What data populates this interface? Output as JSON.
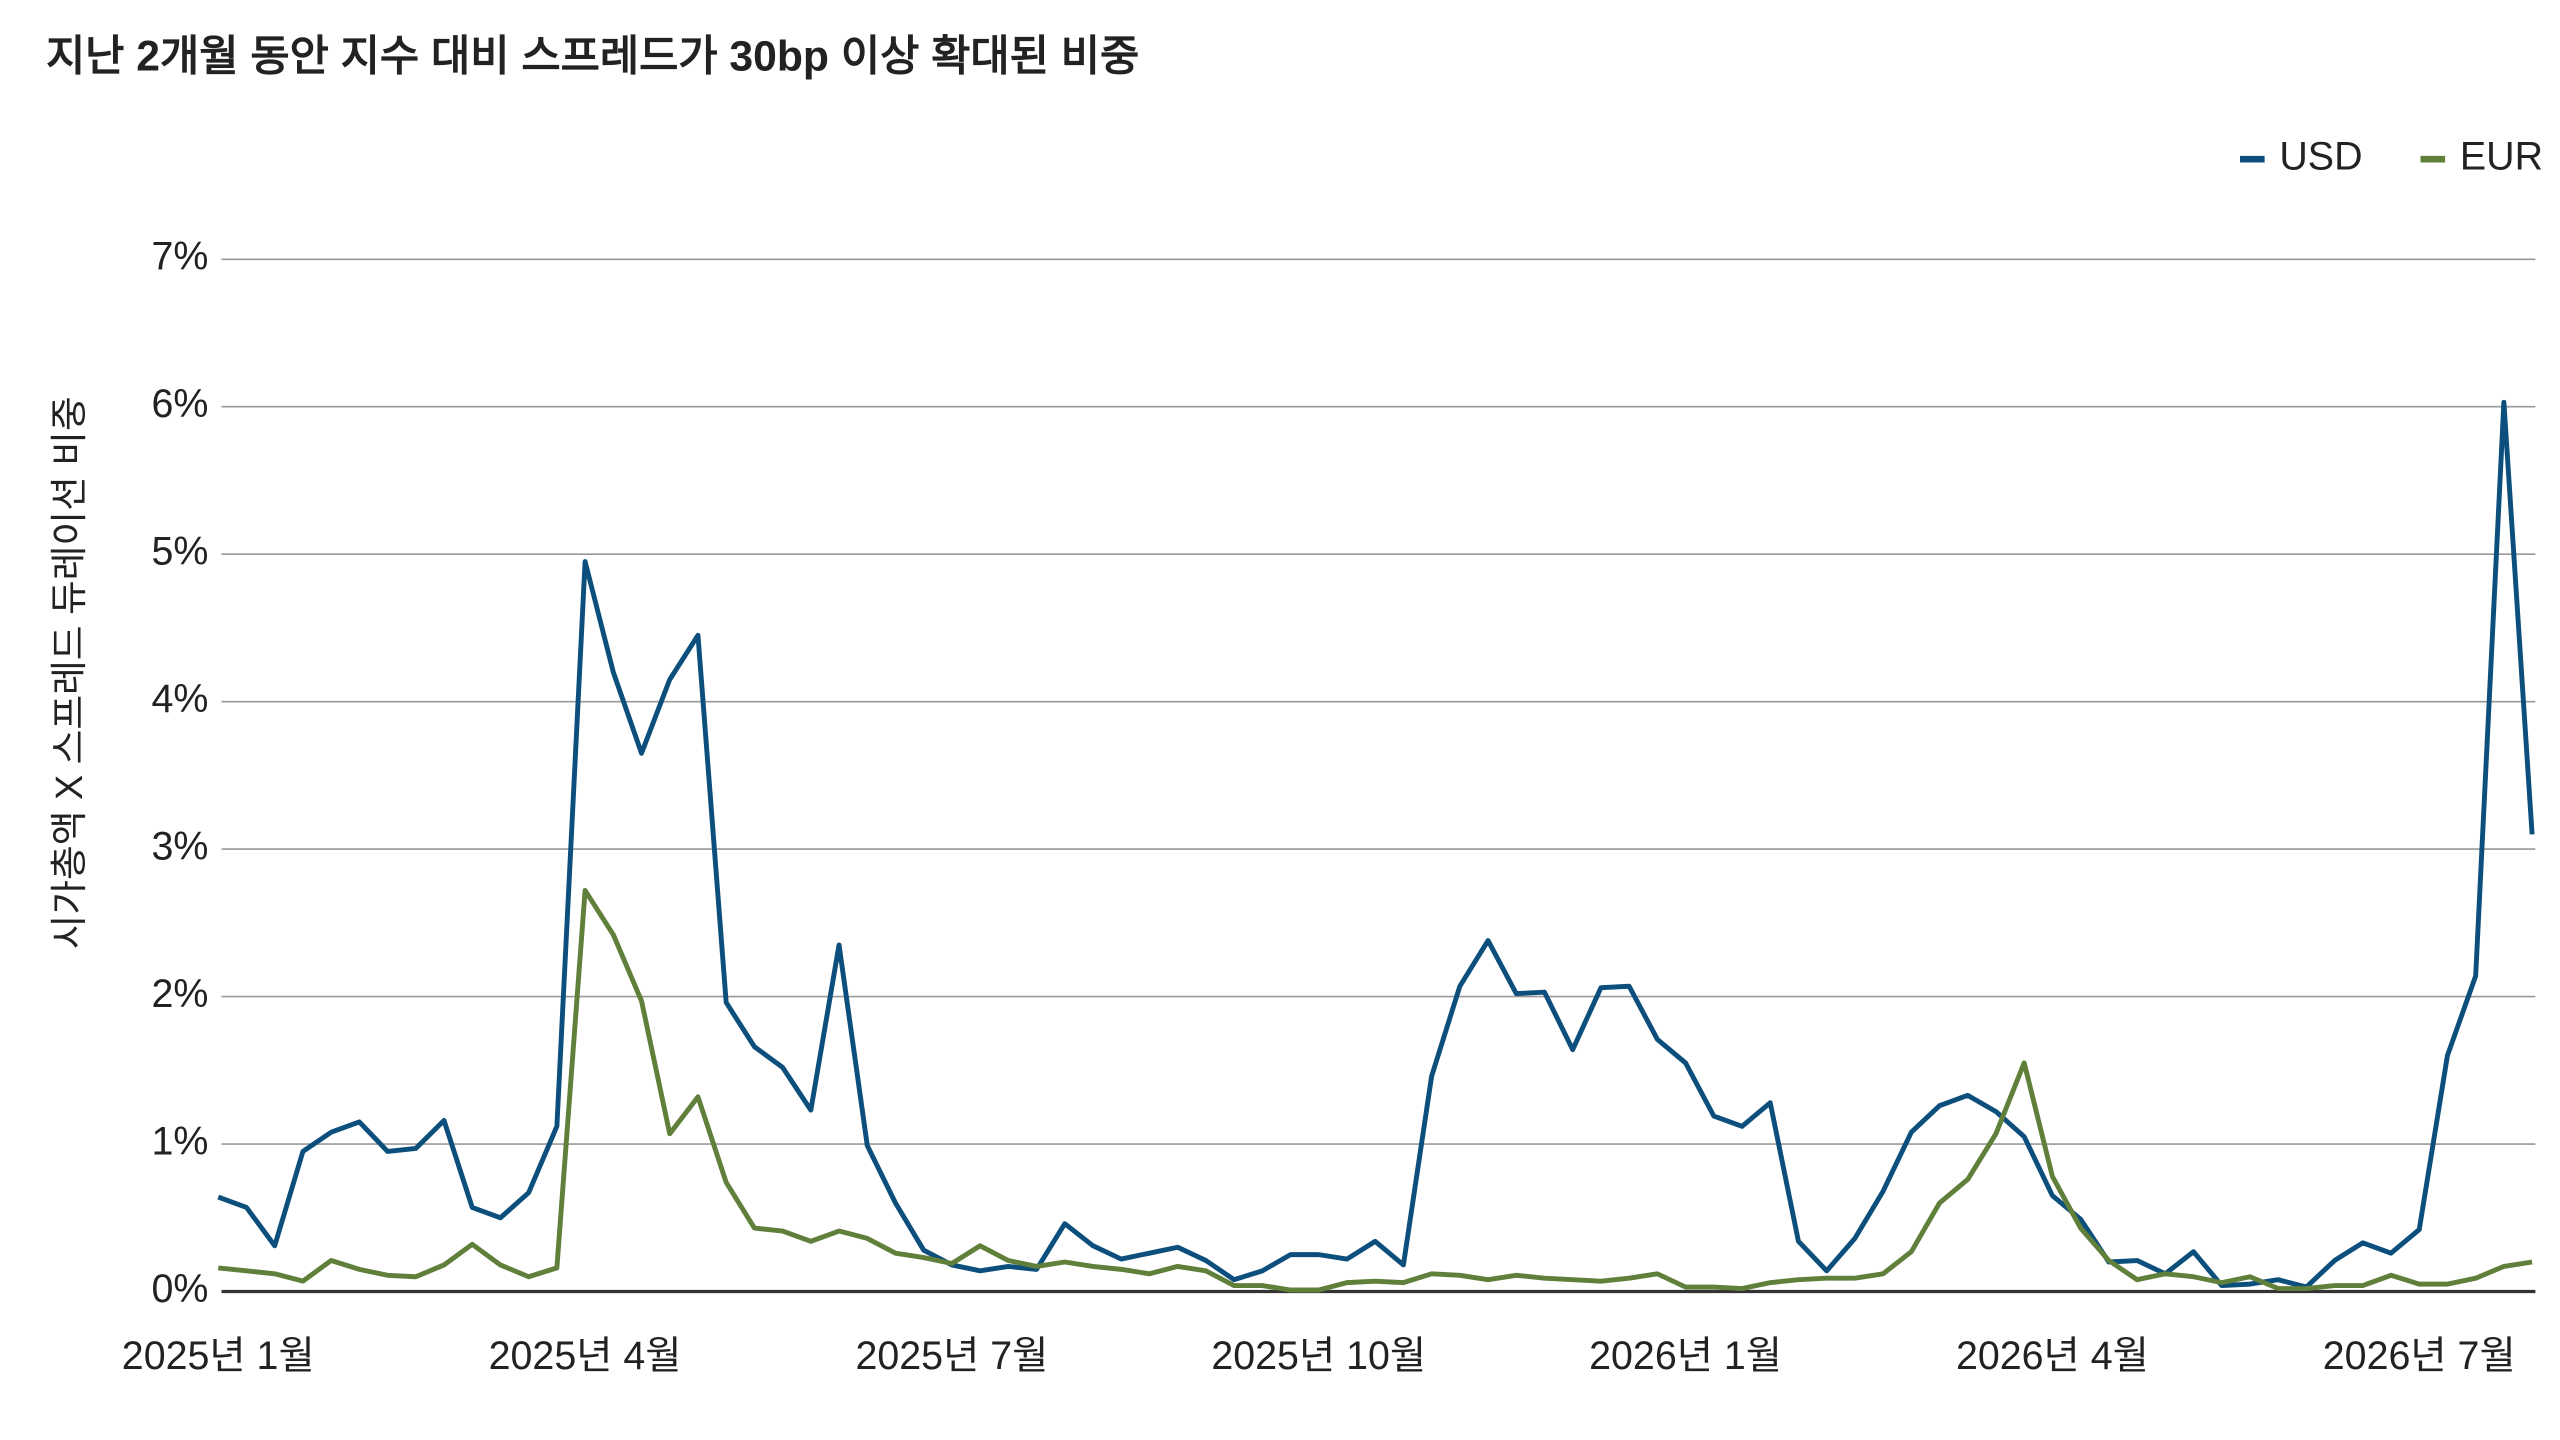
{
  "chart_data": {
    "type": "line",
    "title": "지난 2개월 동안 지수 대비 스프레드가 30bp 이상 확대된 비중",
    "y_label": "시가총액 X 스프레드 듀레이션 비중",
    "categories": [
      "2025년 1월",
      null,
      null,
      null,
      null,
      null,
      null,
      null,
      null,
      null,
      null,
      null,
      null,
      "2025년 4월",
      null,
      null,
      null,
      null,
      null,
      null,
      null,
      null,
      null,
      null,
      null,
      null,
      "2025년 7월",
      null,
      null,
      null,
      null,
      null,
      null,
      null,
      null,
      null,
      null,
      null,
      null,
      "2025년 10월",
      null,
      null,
      null,
      null,
      null,
      null,
      null,
      null,
      null,
      null,
      null,
      null,
      "2026년 1월",
      null,
      null,
      null,
      null,
      null,
      null,
      null,
      null,
      null,
      null,
      null,
      null,
      "2026년 4월",
      null,
      null,
      null,
      null,
      null,
      null,
      null,
      null,
      null,
      null,
      null,
      null,
      "2026년 7월",
      null,
      null,
      null,
      null
    ],
    "series": [
      {
        "name": "USD",
        "color": "#0d4f7c",
        "values": [
          0.64,
          0.57,
          0.31,
          0.95,
          1.08,
          1.15,
          0.95,
          0.97,
          1.16,
          0.57,
          0.5,
          0.67,
          1.12,
          4.95,
          4.2,
          3.65,
          4.15,
          4.45,
          1.96,
          1.66,
          1.52,
          1.23,
          2.35,
          0.99,
          0.6,
          0.28,
          0.18,
          0.14,
          0.17,
          0.15,
          0.46,
          0.31,
          0.22,
          0.26,
          0.3,
          0.21,
          0.08,
          0.14,
          0.25,
          0.25,
          0.22,
          0.34,
          0.18,
          1.46,
          2.07,
          2.38,
          2.02,
          2.03,
          1.64,
          2.06,
          2.07,
          1.71,
          1.55,
          1.19,
          1.12,
          1.28,
          0.34,
          0.14,
          0.36,
          0.68,
          1.08,
          1.26,
          1.33,
          1.22,
          1.05,
          0.65,
          0.49,
          0.2,
          0.21,
          0.12,
          0.27,
          0.04,
          0.05,
          0.08,
          0.03,
          0.21,
          0.33,
          0.26,
          0.42,
          1.6,
          2.14,
          6.03,
          3.1
        ]
      },
      {
        "name": "EUR",
        "color": "#5f7f3a",
        "values": [
          0.16,
          0.14,
          0.12,
          0.07,
          0.21,
          0.15,
          0.11,
          0.1,
          0.18,
          0.32,
          0.18,
          0.1,
          0.16,
          2.72,
          2.42,
          1.97,
          1.07,
          1.32,
          0.74,
          0.43,
          0.41,
          0.34,
          0.41,
          0.36,
          0.26,
          0.23,
          0.19,
          0.31,
          0.21,
          0.17,
          0.2,
          0.17,
          0.15,
          0.12,
          0.17,
          0.14,
          0.04,
          0.04,
          0.01,
          0.01,
          0.06,
          0.07,
          0.06,
          0.12,
          0.11,
          0.08,
          0.11,
          0.09,
          0.08,
          0.07,
          0.09,
          0.12,
          0.03,
          0.03,
          0.02,
          0.06,
          0.08,
          0.09,
          0.09,
          0.12,
          0.27,
          0.6,
          0.76,
          1.07,
          1.55,
          0.78,
          0.43,
          0.21,
          0.08,
          0.12,
          0.1,
          0.06,
          0.1,
          0.02,
          0.02,
          0.04,
          0.04,
          0.11,
          0.05,
          0.05,
          0.09,
          0.17,
          0.2
        ]
      }
    ],
    "ylim": [
      0,
      7
    ],
    "yticks": [
      {
        "value": 0,
        "label": "0%"
      },
      {
        "value": 1,
        "label": "1%"
      },
      {
        "value": 2,
        "label": "2%"
      },
      {
        "value": 3,
        "label": "3%"
      },
      {
        "value": 4,
        "label": "4%"
      },
      {
        "value": 5,
        "label": "5%"
      },
      {
        "value": 6,
        "label": "6%"
      },
      {
        "value": 7,
        "label": "7%"
      }
    ],
    "grid": true,
    "legend": "top-right"
  }
}
